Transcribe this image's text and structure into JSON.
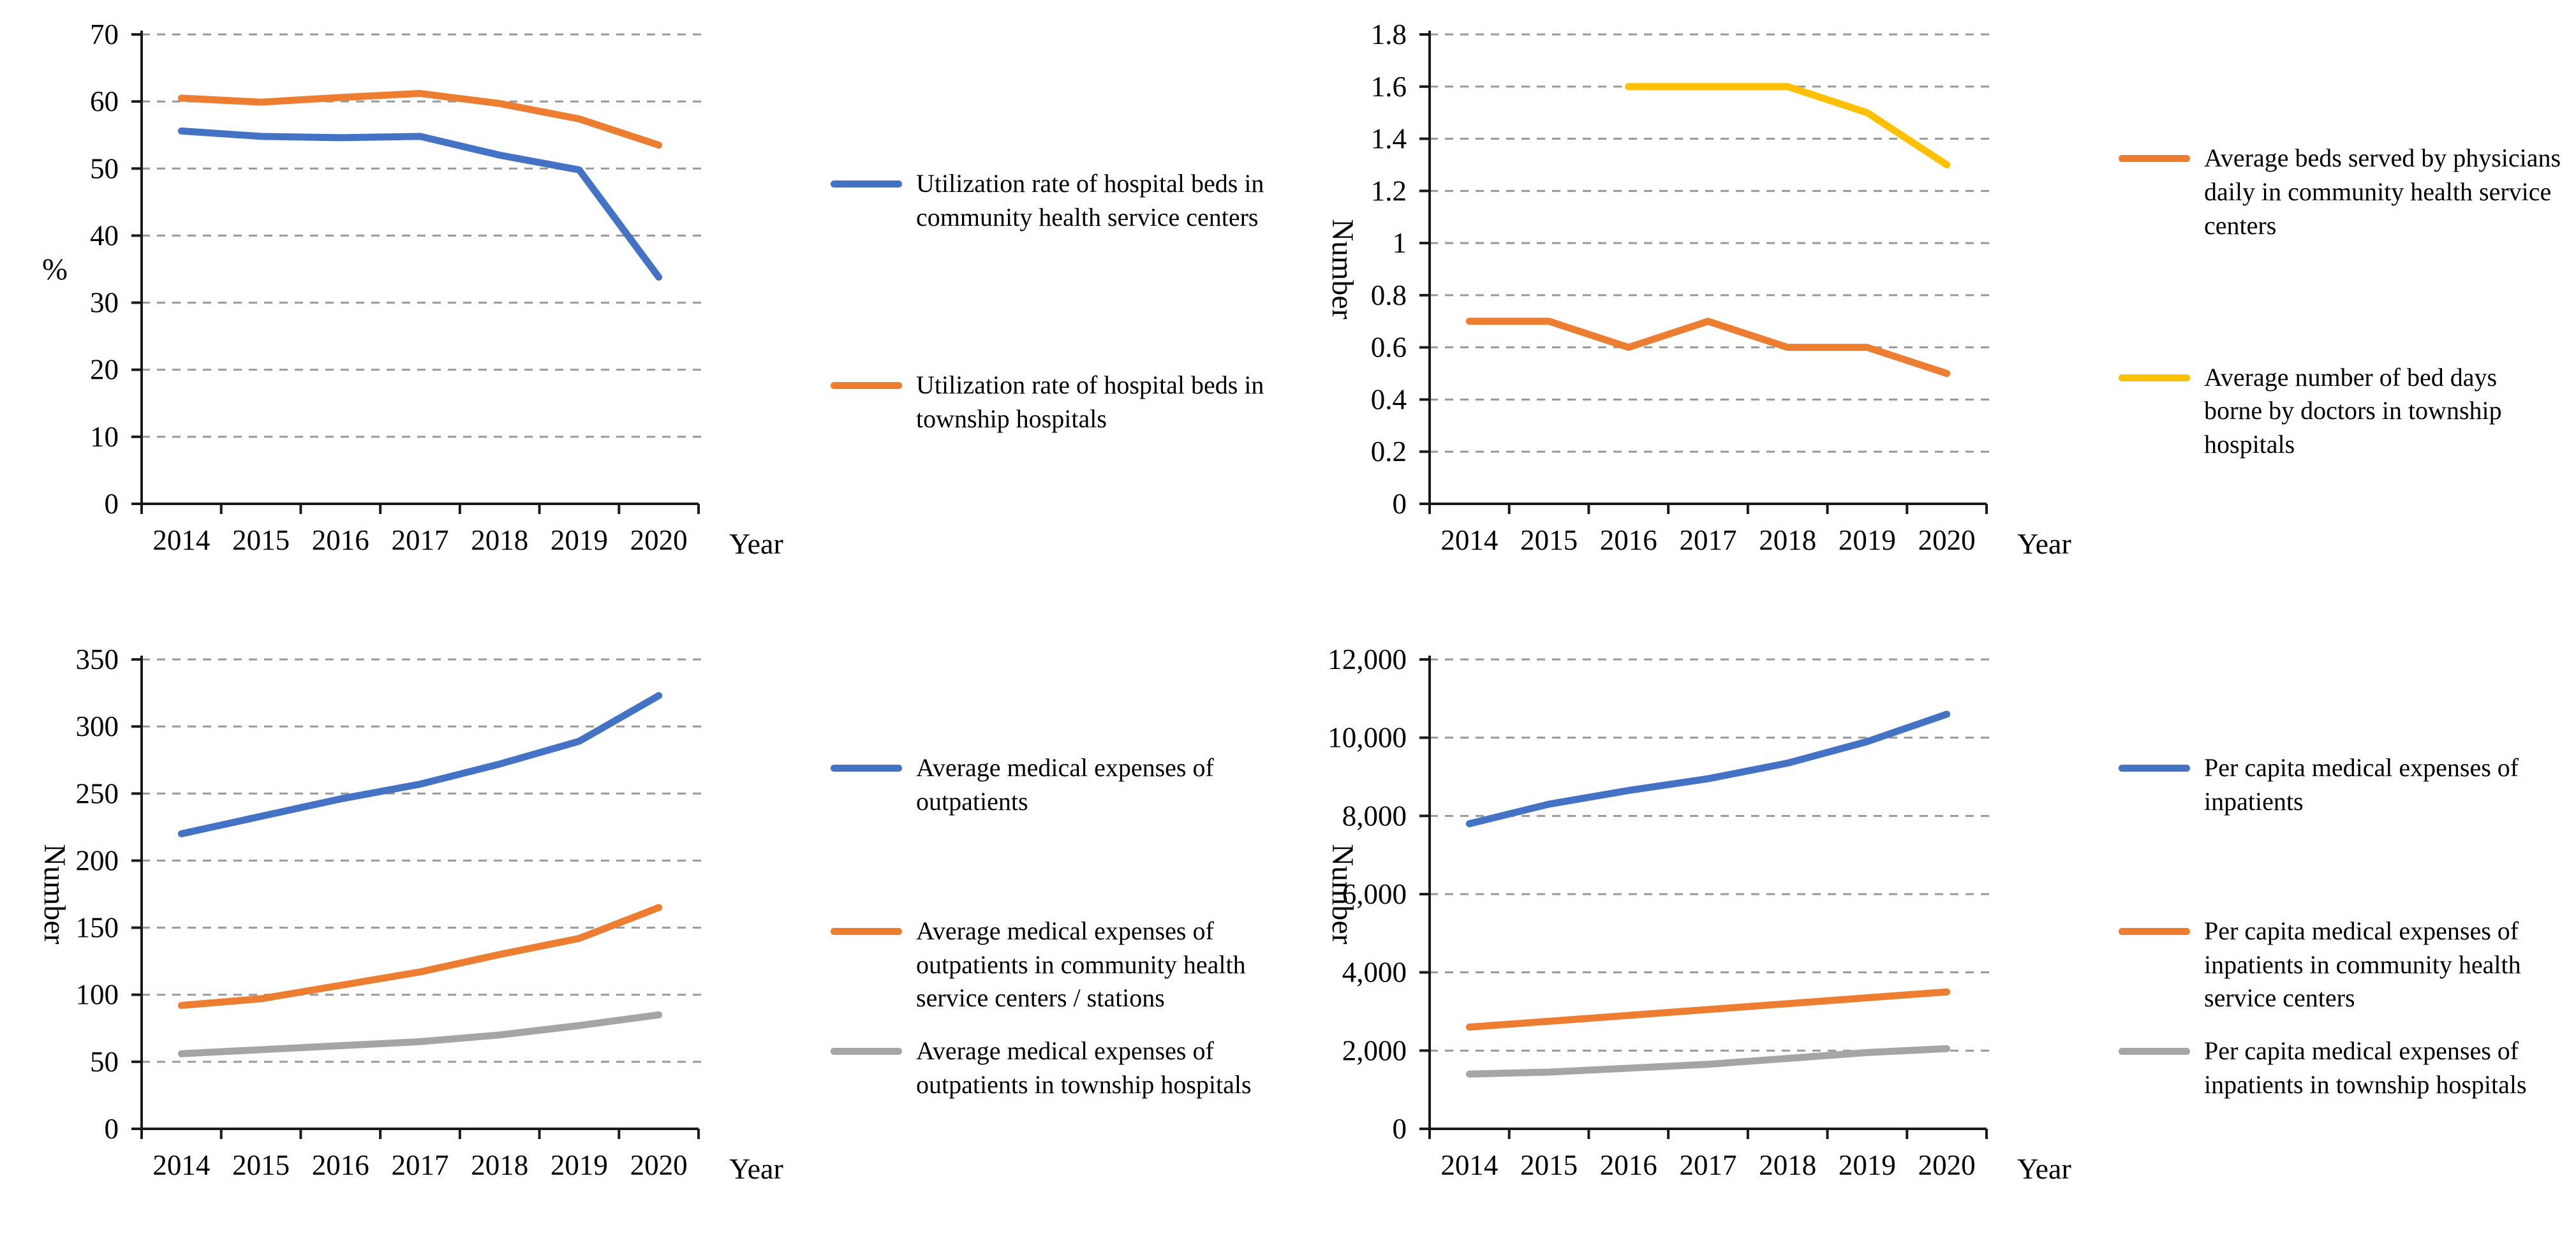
{
  "page": {
    "background": "#ffffff"
  },
  "colors": {
    "blue": "#4472C4",
    "orange": "#ED7D31",
    "yellow": "#FFC000",
    "gray": "#A5A5A5",
    "gridline": "#999999",
    "axis": "#1a1a1a"
  },
  "chart_data": [
    {
      "id": "bed-utilization",
      "type": "line",
      "title": "",
      "xlabel": "Year",
      "ylabel": "%",
      "ylabel_rotated": false,
      "categories": [
        "2014",
        "2015",
        "2016",
        "2017",
        "2018",
        "2019",
        "2020"
      ],
      "ylim": [
        0,
        70
      ],
      "ytick_values": [
        0,
        10,
        20,
        30,
        40,
        50,
        60,
        70
      ],
      "ytick_labels": [
        "0",
        "10",
        "20",
        "30",
        "40",
        "50",
        "60",
        "70"
      ],
      "grid": "horizontal-dashed",
      "legend_position": "right",
      "series": [
        {
          "name": "Utilization rate of hospital beds in community health service centers",
          "color": "#4472C4",
          "values": [
            55.6,
            54.8,
            54.6,
            54.8,
            52.0,
            49.8,
            33.8
          ]
        },
        {
          "name": "Utilization rate of hospital beds in township hospitals",
          "color": "#ED7D31",
          "values": [
            60.5,
            59.9,
            60.6,
            61.2,
            59.7,
            57.4,
            53.5
          ]
        }
      ]
    },
    {
      "id": "physician-bed-load",
      "type": "line",
      "title": "",
      "xlabel": "Year",
      "ylabel": "Number",
      "ylabel_rotated": true,
      "categories": [
        "2014",
        "2015",
        "2016",
        "2017",
        "2018",
        "2019",
        "2020"
      ],
      "ylim": [
        0,
        1.8
      ],
      "ytick_values": [
        0,
        0.2,
        0.4,
        0.6,
        0.8,
        1,
        1.2,
        1.4,
        1.6,
        1.8
      ],
      "ytick_labels": [
        "0",
        "0.2",
        "0.4",
        "0.6",
        "0.8",
        "1",
        "1.2",
        "1.4",
        "1.6",
        "1.8"
      ],
      "grid": "horizontal-dashed",
      "legend_position": "right",
      "series": [
        {
          "name": "Average beds served by physicians daily in community health service centers",
          "color": "#ED7D31",
          "values": [
            0.7,
            0.7,
            0.6,
            0.7,
            0.6,
            0.6,
            0.5
          ]
        },
        {
          "name": "Average number of bed days borne by doctors in township hospitals",
          "color": "#FFC000",
          "values": [
            null,
            null,
            1.6,
            1.6,
            1.6,
            1.5,
            1.3
          ]
        }
      ]
    },
    {
      "id": "outpatient-expenses",
      "type": "line",
      "title": "",
      "xlabel": "Year",
      "ylabel": "Number",
      "ylabel_rotated": true,
      "categories": [
        "2014",
        "2015",
        "2016",
        "2017",
        "2018",
        "2019",
        "2020"
      ],
      "ylim": [
        0,
        350
      ],
      "ytick_values": [
        0,
        50,
        100,
        150,
        200,
        250,
        300,
        350
      ],
      "ytick_labels": [
        "0",
        "50",
        "100",
        "150",
        "200",
        "250",
        "300",
        "350"
      ],
      "grid": "horizontal-dashed",
      "legend_position": "right",
      "series": [
        {
          "name": "Average medical expenses of outpatients",
          "color": "#4472C4",
          "values": [
            220,
            233,
            246,
            257,
            272,
            289,
            323
          ]
        },
        {
          "name": "Average medical expenses of outpatients in community health service centers / stations",
          "color": "#ED7D31",
          "values": [
            92,
            97,
            107,
            117,
            130,
            142,
            165
          ]
        },
        {
          "name": "Average medical expenses of outpatients in township hospitals",
          "color": "#A5A5A5",
          "values": [
            56,
            59,
            62,
            65,
            70,
            77,
            85
          ]
        }
      ]
    },
    {
      "id": "inpatient-expenses",
      "type": "line",
      "title": "",
      "xlabel": "Year",
      "ylabel": "Number",
      "ylabel_rotated": true,
      "categories": [
        "2014",
        "2015",
        "2016",
        "2017",
        "2018",
        "2019",
        "2020"
      ],
      "ylim": [
        0,
        12000
      ],
      "ytick_values": [
        0,
        2000,
        4000,
        6000,
        8000,
        10000,
        12000
      ],
      "ytick_labels": [
        "0",
        "2,000",
        "4,000",
        "6,000",
        "8,000",
        "10,000",
        "12,000"
      ],
      "grid": "horizontal-dashed",
      "legend_position": "right",
      "series": [
        {
          "name": "Per capita medical expenses of inpatients",
          "color": "#4472C4",
          "values": [
            7800,
            8300,
            8650,
            8950,
            9350,
            9900,
            10600
          ]
        },
        {
          "name": "Per capita medical expenses of inpatients in community health service centers",
          "color": "#ED7D31",
          "values": [
            2600,
            2750,
            2900,
            3050,
            3200,
            3350,
            3500
          ]
        },
        {
          "name": "Per capita medical expenses of inpatients in township hospitals",
          "color": "#A5A5A5",
          "values": [
            1400,
            1450,
            1550,
            1650,
            1800,
            1950,
            2050
          ]
        }
      ]
    }
  ]
}
